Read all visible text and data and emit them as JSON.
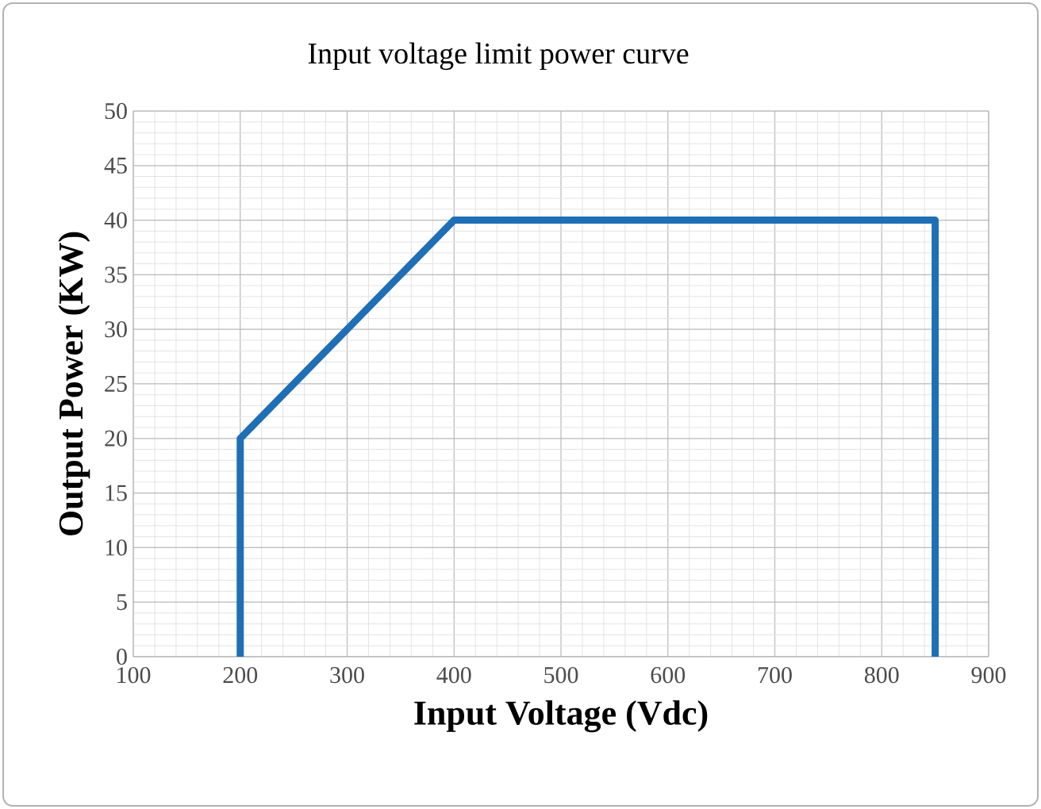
{
  "chart_data": {
    "type": "line",
    "title": "Input voltage limit power curve",
    "xlabel": "Input Voltage (Vdc)",
    "ylabel": "Output Power (KW)",
    "x": [
      200,
      200,
      400,
      850,
      850
    ],
    "series": [
      {
        "color": "#1f6fb5",
        "values": [
          0,
          20,
          40,
          40,
          0
        ]
      }
    ],
    "xlim": [
      100,
      900
    ],
    "xticks": [
      100,
      200,
      300,
      400,
      500,
      600,
      700,
      800,
      900
    ],
    "ylim": [
      0,
      50
    ],
    "yticks": [
      0,
      5,
      10,
      15,
      20,
      25,
      30,
      35,
      40,
      45,
      50
    ],
    "grid": true,
    "marker": "none",
    "line_style": "solid"
  }
}
